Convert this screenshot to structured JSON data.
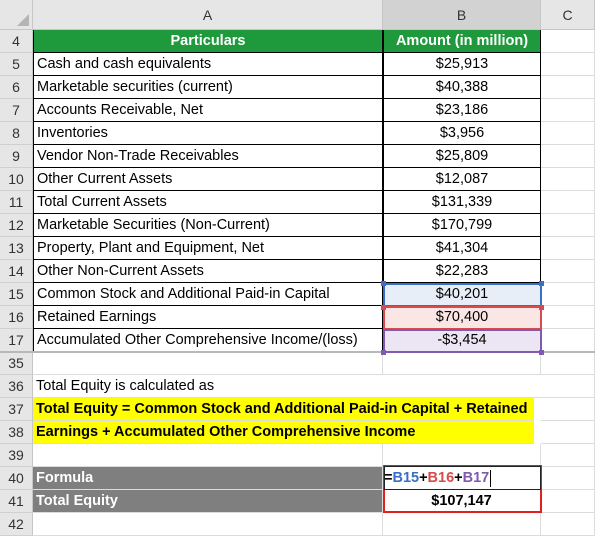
{
  "columns": [
    "A",
    "B",
    "C"
  ],
  "selected_column": "B",
  "table": {
    "header": {
      "row": "4",
      "particulars": "Particulars",
      "amount": "Amount (in million)"
    },
    "rows": [
      {
        "row": "5",
        "label": "Cash and cash equivalents",
        "value": "$25,913"
      },
      {
        "row": "6",
        "label": "Marketable securities (current)",
        "value": "$40,388"
      },
      {
        "row": "7",
        "label": "Accounts Receivable, Net",
        "value": "$23,186"
      },
      {
        "row": "8",
        "label": "Inventories",
        "value": "$3,956"
      },
      {
        "row": "9",
        "label": "Vendor Non-Trade Receivables",
        "value": "$25,809"
      },
      {
        "row": "10",
        "label": "Other Current Assets",
        "value": "$12,087"
      },
      {
        "row": "11",
        "label": "Total Current Assets",
        "value": "$131,339"
      },
      {
        "row": "12",
        "label": "Marketable Securities (Non-Current)",
        "value": "$170,799"
      },
      {
        "row": "13",
        "label": "Property, Plant and Equipment, Net",
        "value": "$41,304"
      },
      {
        "row": "14",
        "label": "Other Non-Current Assets",
        "value": "$22,283"
      },
      {
        "row": "15",
        "label": "Common Stock and Additional Paid-in Capital",
        "value": "$40,201"
      },
      {
        "row": "16",
        "label": "Retained Earnings",
        "value": "$70,400"
      },
      {
        "row": "17",
        "label": "Accumulated Other Comprehensive Income/(loss)",
        "value": "-$3,454"
      }
    ]
  },
  "after_rows": [
    "35",
    "36",
    "37",
    "38",
    "39",
    "40",
    "41",
    "42"
  ],
  "notes": {
    "calc_intro": "Total Equity is calculated as",
    "formula_line1": "Total Equity = Common Stock and Additional Paid-in Capital + Retained",
    "formula_line2": "Earnings + Accumulated Other Comprehensive Income"
  },
  "formula_row": {
    "label": "Formula",
    "eq": "=",
    "ref1": "B15",
    "plus1": "+",
    "ref2": "B16",
    "plus2": "+",
    "ref3": "B17"
  },
  "result_row": {
    "label": "Total Equity",
    "value": "$107,147"
  },
  "colors": {
    "header_green": "#1e9a3c",
    "highlight_yellow": "#ffff00",
    "label_gray": "#7f7f7f",
    "ref_b15": "#3b6ec6",
    "ref_b16": "#d64b4b",
    "ref_b17": "#7f5ab0",
    "result_border": "#e0201e"
  }
}
